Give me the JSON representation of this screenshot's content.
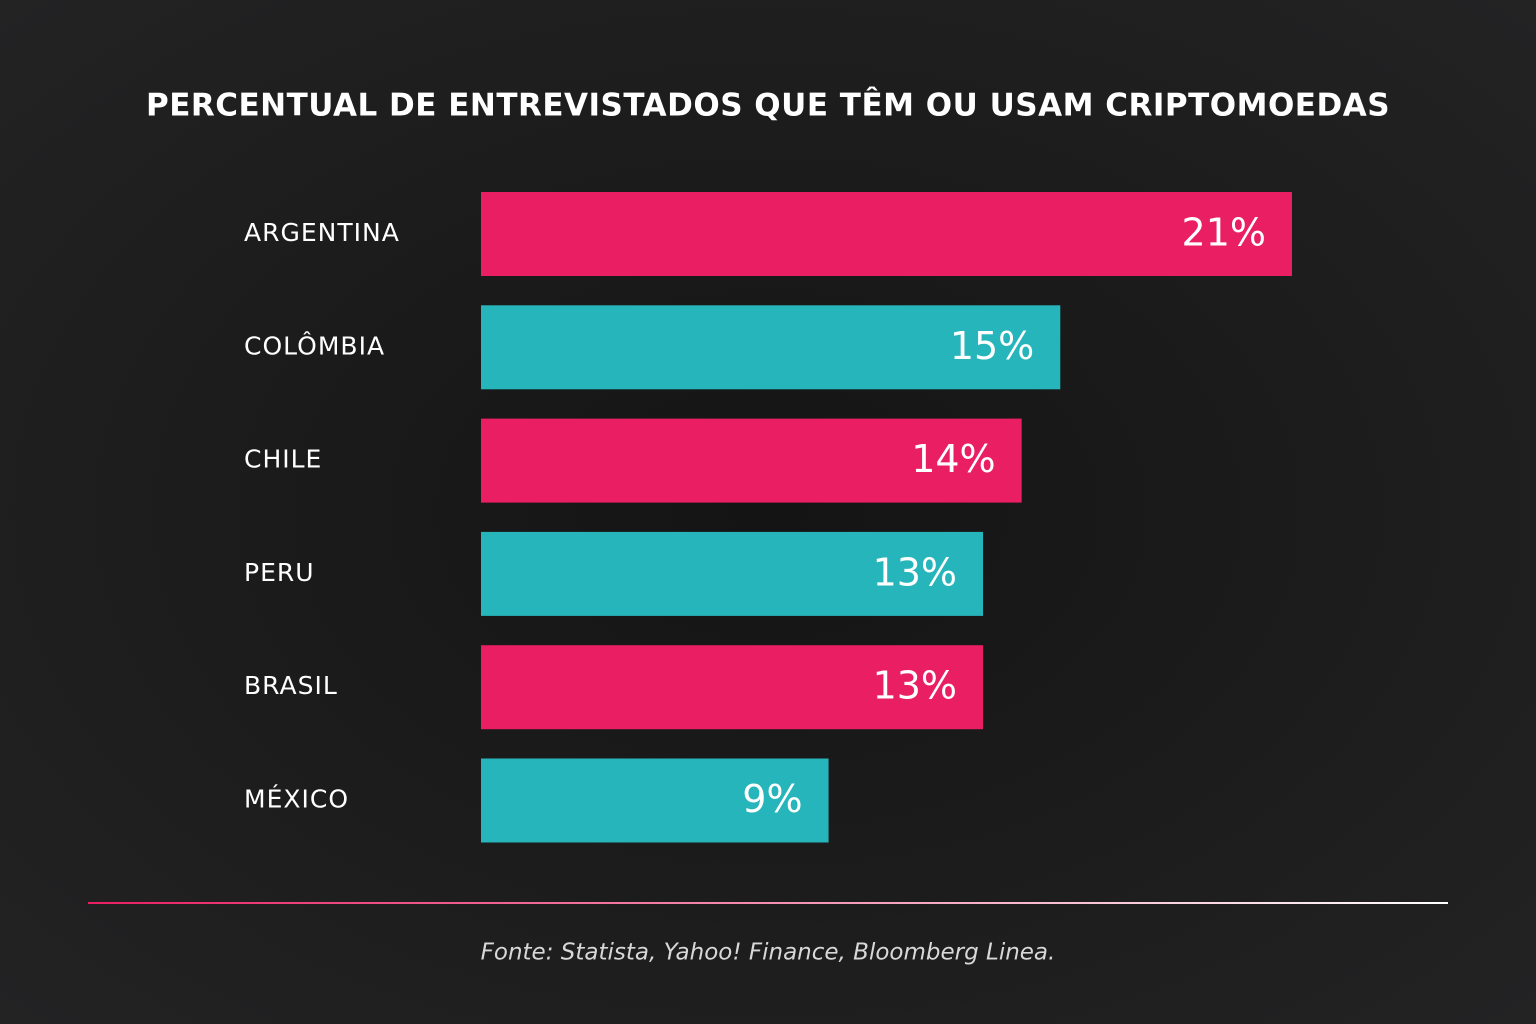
{
  "chart_data": {
    "type": "bar",
    "orientation": "horizontal",
    "title": "PERCENTUAL DE ENTREVISTADOS QUE TÊM OU USAM CRIPTOMOEDAS",
    "categories": [
      "ARGENTINA",
      "COLÔMBIA",
      "CHILE",
      "PERU",
      "BRASIL",
      "MÉXICO"
    ],
    "values": [
      21,
      15,
      14,
      13,
      13,
      9
    ],
    "value_labels": [
      "21%",
      "15%",
      "14%",
      "13%",
      "13%",
      "9%"
    ],
    "colors": [
      "#e91e63",
      "#26b5bb",
      "#e91e63",
      "#26b5bb",
      "#e91e63",
      "#26b5bb"
    ],
    "source": "Fonte: Statista, Yahoo! Finance, Bloomberg Linea."
  }
}
